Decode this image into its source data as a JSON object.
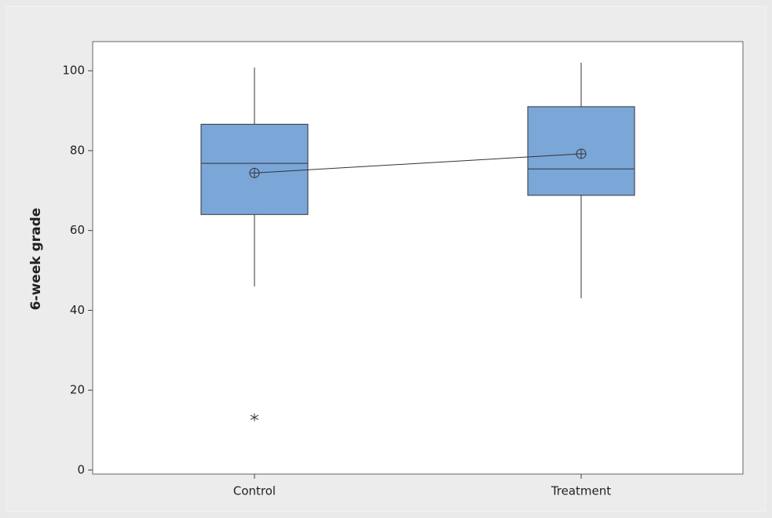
{
  "chart_data": {
    "type": "box",
    "ylabel": "6-week grade",
    "categories": [
      "Control",
      "Treatment"
    ],
    "boxes": [
      {
        "whisker_low": 46,
        "q1": 64,
        "median": 76.8,
        "q3": 86.6,
        "whisker_high": 100.8,
        "mean": 74.4,
        "outliers": [
          13.2
        ]
      },
      {
        "whisker_low": 43,
        "q1": 68.8,
        "median": 75.4,
        "q3": 91,
        "whisker_high": 102,
        "mean": 79.2,
        "outliers": []
      }
    ],
    "color": "#7ba6d8",
    "connect_means": true,
    "ylim": [
      -1,
      107.3
    ],
    "yticks": [
      0,
      20,
      40,
      60,
      80,
      100
    ]
  }
}
